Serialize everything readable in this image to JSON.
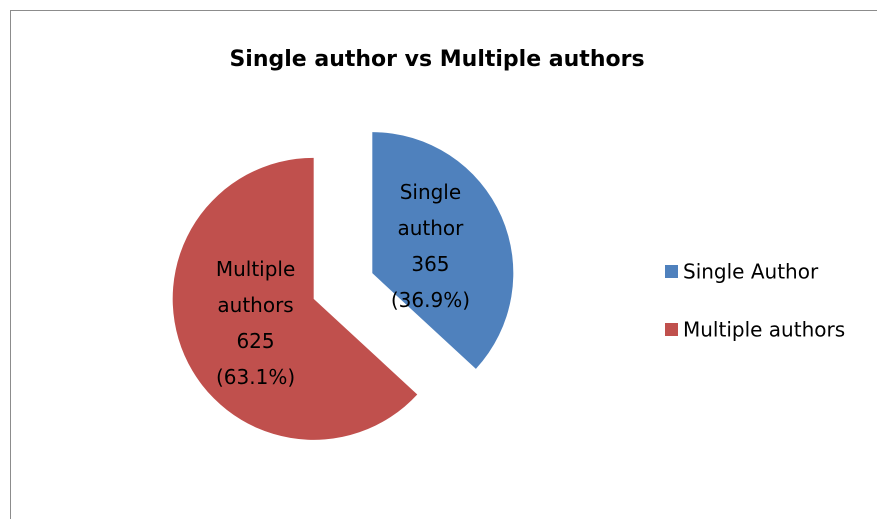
{
  "chart_data": {
    "type": "pie",
    "title": "Single author vs Multiple authors",
    "categories": [
      "Single Author",
      "Multiple authors"
    ],
    "label_names": [
      [
        "Single",
        "author"
      ],
      [
        "Multiple",
        "authors"
      ]
    ],
    "values": [
      365,
      625
    ],
    "value_labels": [
      "(36.9%)",
      "(63.1%)"
    ],
    "colors": [
      "#4f81bd",
      "#c0504d"
    ],
    "legend": "right"
  }
}
